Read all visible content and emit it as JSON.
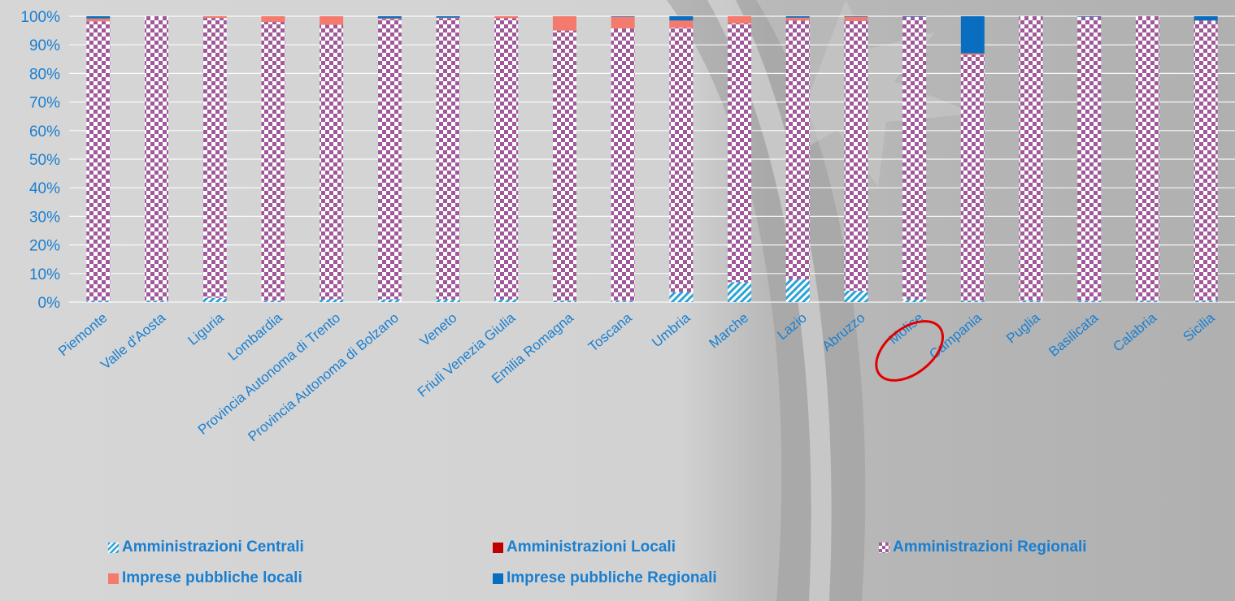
{
  "chart_data": {
    "type": "bar",
    "stacked": true,
    "percent": true,
    "title": "",
    "xlabel": "",
    "ylabel": "",
    "ylim": [
      0,
      100
    ],
    "y_ticks": [
      "0%",
      "10%",
      "20%",
      "30%",
      "40%",
      "50%",
      "60%",
      "70%",
      "80%",
      "90%",
      "100%"
    ],
    "grid": true,
    "legend_position": "bottom",
    "categories": [
      "Piemonte",
      "Valle d'Aosta",
      "Liguria",
      "Lombardia",
      "Provincia Autonoma di Trento",
      "Provincia Autonoma di Bolzano",
      "Veneto",
      "Friuli Venezia Giulia",
      "Emilia Romagna",
      "Toscana",
      "Umbria",
      "Marche",
      "Lazio",
      "Abruzzo",
      "Molise",
      "Campania",
      "Puglia",
      "Basilicata",
      "Calabria",
      "Sicilia"
    ],
    "highlighted_category": "Molise",
    "series": [
      {
        "name": "Amministrazioni Centrali",
        "color": "#2aa3d8",
        "pattern": "diagonal",
        "values": [
          0.5,
          0.5,
          1.5,
          0.5,
          1,
          1,
          1,
          1,
          0.5,
          0.5,
          3.5,
          7,
          8,
          4,
          1,
          0.5,
          0.5,
          0.5,
          0.5,
          0.5
        ]
      },
      {
        "name": "Amministrazioni Locali",
        "color": "#c00000",
        "pattern": "solid",
        "values": [
          0,
          0,
          0,
          0,
          0,
          0,
          0,
          0,
          0,
          0,
          0,
          0,
          0,
          0,
          0,
          0,
          0,
          0,
          0,
          0
        ]
      },
      {
        "name": "Amministrazioni Regionali",
        "color": "#a0589a",
        "pattern": "checker",
        "values": [
          97.7,
          99.5,
          97.9,
          97.5,
          96,
          98,
          98.3,
          98.3,
          94.5,
          95.3,
          92.5,
          90.5,
          90.5,
          94.3,
          98.8,
          86,
          99.5,
          99.3,
          99.5,
          98
        ]
      },
      {
        "name": "Imprese pubbliche locali",
        "color": "#f47a6e",
        "pattern": "solid",
        "values": [
          1,
          0,
          0.6,
          2,
          3,
          0.3,
          0.2,
          0.7,
          5,
          4,
          2.5,
          2.5,
          1,
          1.5,
          0,
          0.5,
          0,
          0,
          0,
          0
        ]
      },
      {
        "name": "Imprese pubbliche Regionali",
        "color": "#0a6ec0",
        "pattern": "solid",
        "values": [
          0.8,
          0,
          0,
          0,
          0,
          0.7,
          0.5,
          0,
          0,
          0.2,
          1.5,
          0,
          0.5,
          0.2,
          0.2,
          13,
          0,
          0.2,
          0,
          1.5
        ]
      }
    ]
  }
}
